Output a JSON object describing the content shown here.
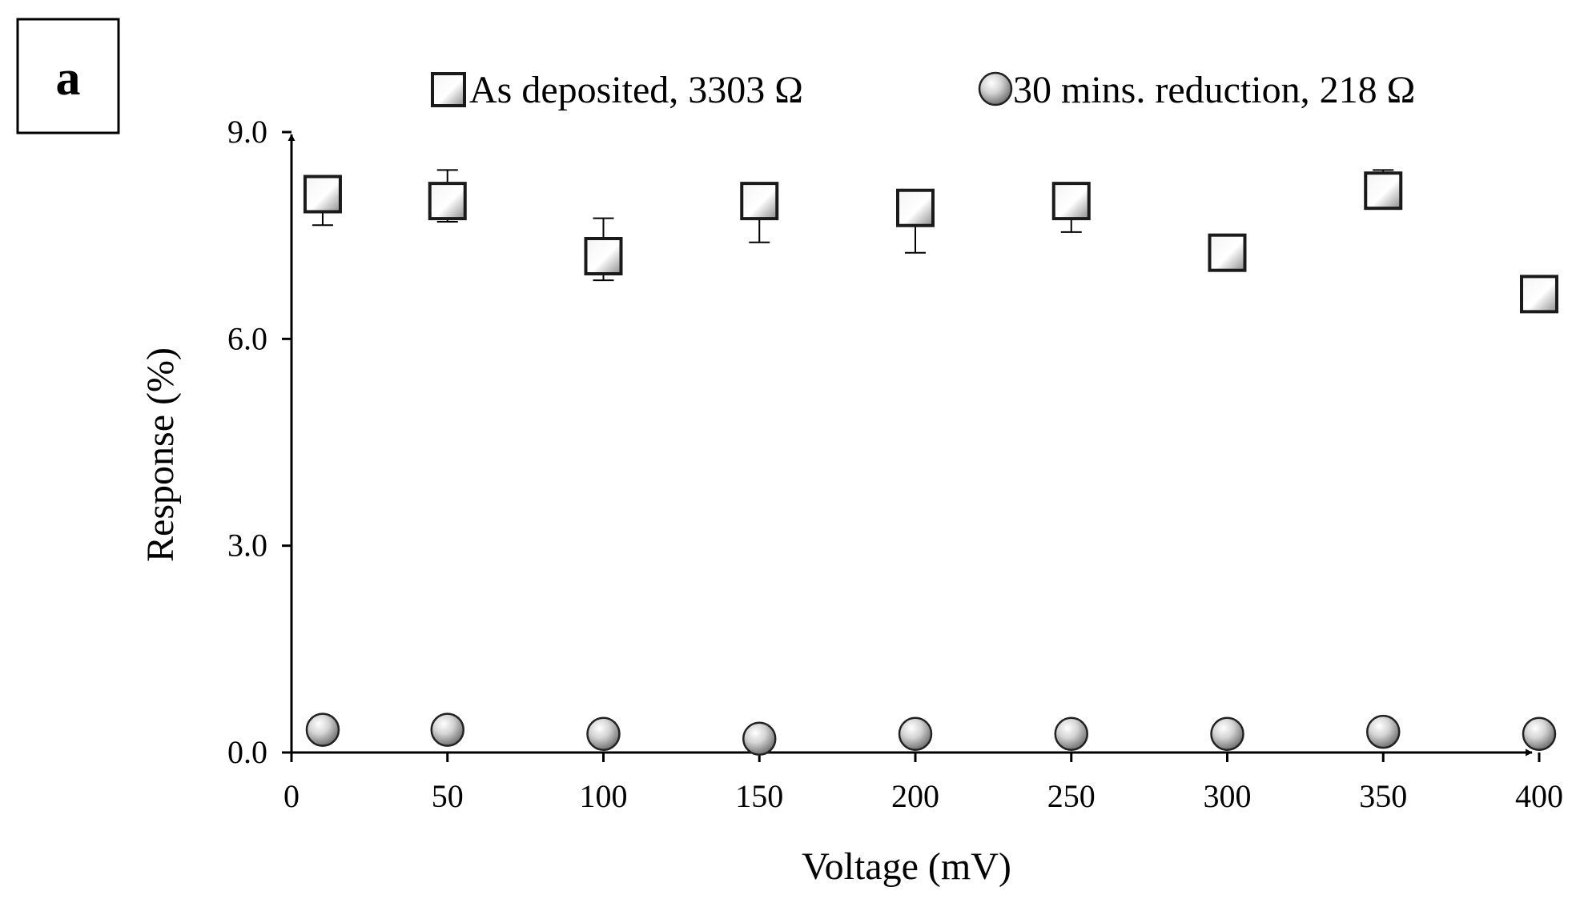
{
  "panel_label": "a",
  "chart_data": {
    "type": "scatter",
    "xlabel": "Voltage (mV)",
    "ylabel": "Response (%)",
    "xlim": [
      0,
      400
    ],
    "ylim": [
      0,
      9
    ],
    "x_ticks": [
      "0",
      "50",
      "100",
      "150",
      "200",
      "250",
      "300",
      "350",
      "400"
    ],
    "y_ticks": [
      "0.0",
      "3.0",
      "6.0",
      "9.0"
    ],
    "grid": false,
    "legend_position": "top",
    "series": [
      {
        "name": "As deposited, 3303 Ω",
        "marker": "square",
        "x": [
          10,
          50,
          100,
          150,
          200,
          250,
          300,
          350,
          400
        ],
        "y": [
          8.1,
          8.0,
          7.2,
          8.0,
          7.9,
          8.0,
          7.25,
          8.15,
          6.65
        ],
        "error_low": [
          0.45,
          0.3,
          0.35,
          0.6,
          0.65,
          0.45,
          0,
          0,
          0
        ],
        "error_high": [
          0,
          0.45,
          0.55,
          0,
          0,
          0,
          0,
          0.3,
          0
        ]
      },
      {
        "name": "30 mins. reduction, 218 Ω",
        "marker": "sphere",
        "x": [
          10,
          50,
          100,
          150,
          200,
          250,
          300,
          350,
          400
        ],
        "y": [
          0.33,
          0.33,
          0.27,
          0.2,
          0.27,
          0.27,
          0.27,
          0.3,
          0.27
        ]
      }
    ]
  }
}
